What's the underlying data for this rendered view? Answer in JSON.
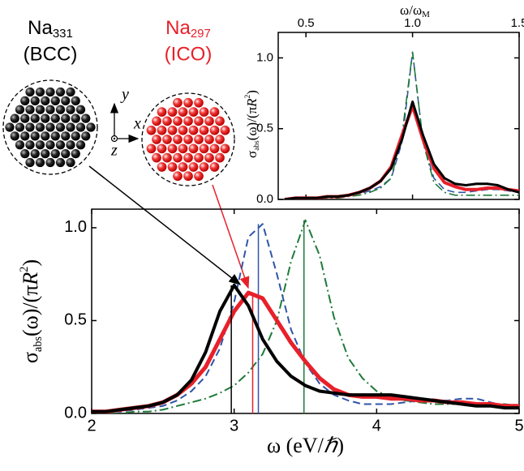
{
  "chart_data": [
    {
      "type": "line",
      "x": [
        2.0,
        2.1,
        2.2,
        2.3,
        2.4,
        2.5,
        2.6,
        2.7,
        2.8,
        2.9,
        3.0,
        3.1,
        3.2,
        3.3,
        3.4,
        3.5,
        3.6,
        3.7,
        3.8,
        3.9,
        4.0,
        4.1,
        4.2,
        4.3,
        4.4,
        4.5,
        4.6,
        4.7,
        4.8,
        4.9,
        5.0
      ],
      "xlabel": [
        "ω (eV/",
        "ℏ",
        ")"
      ],
      "ylabel": [
        "σ",
        "abs",
        "(ω)/(π",
        "R",
        "2",
        ")"
      ],
      "xlim": [
        2,
        5
      ],
      "xticks": [
        2,
        3,
        4,
        5
      ],
      "ylim": [
        0,
        1.1
      ],
      "yticks": [
        {
          "value": 0,
          "label": "0.0"
        },
        {
          "value": 0.5,
          "label": "0.5"
        },
        {
          "value": 1,
          "label": "1.0"
        }
      ],
      "series": [
        {
          "color": "#2f55a8",
          "style": "dashed",
          "width": 2,
          "peak": 3.17,
          "values": [
            0.01,
            0.01,
            0.01,
            0.02,
            0.03,
            0.04,
            0.07,
            0.12,
            0.2,
            0.35,
            0.6,
            0.95,
            1.02,
            0.75,
            0.45,
            0.27,
            0.16,
            0.1,
            0.07,
            0.05,
            0.05,
            0.05,
            0.06,
            0.07,
            0.07,
            0.07,
            0.08,
            0.08,
            0.06,
            0.04,
            0.03
          ]
        },
        {
          "color": "#1f7a3a",
          "style": "dashdot",
          "width": 2,
          "peak": 3.49,
          "values": [
            0,
            0,
            0,
            0.01,
            0.01,
            0.02,
            0.04,
            0.06,
            0.08,
            0.11,
            0.15,
            0.22,
            0.32,
            0.5,
            0.82,
            1.04,
            0.85,
            0.52,
            0.3,
            0.19,
            0.12,
            0.09,
            0.07,
            0.06,
            0.05,
            0.05,
            0.05,
            0.05,
            0.05,
            0.05,
            0.04
          ]
        },
        {
          "color": "#e8202a",
          "style": "solid",
          "width": 5,
          "peak": 3.13,
          "values": [
            0.01,
            0.01,
            0.02,
            0.03,
            0.04,
            0.06,
            0.1,
            0.16,
            0.25,
            0.4,
            0.55,
            0.65,
            0.62,
            0.5,
            0.38,
            0.28,
            0.19,
            0.13,
            0.1,
            0.09,
            0.09,
            0.08,
            0.08,
            0.07,
            0.07,
            0.06,
            0.06,
            0.05,
            0.05,
            0.04,
            0.04
          ]
        },
        {
          "color": "#000000",
          "style": "solid",
          "width": 4,
          "peak": 2.98,
          "values": [
            0.01,
            0.01,
            0.02,
            0.03,
            0.04,
            0.06,
            0.1,
            0.18,
            0.33,
            0.55,
            0.69,
            0.58,
            0.4,
            0.28,
            0.2,
            0.15,
            0.12,
            0.11,
            0.1,
            0.1,
            0.1,
            0.1,
            0.09,
            0.08,
            0.07,
            0.06,
            0.05,
            0.04,
            0.04,
            0.03,
            0.03
          ]
        }
      ],
      "clusters": [
        {
          "name": [
            "Na",
            "331"
          ],
          "structure": "(BCC)",
          "color": "#000000"
        },
        {
          "name": [
            "Na",
            "297"
          ],
          "structure": "(ICO)",
          "color": "#e8202a"
        }
      ],
      "axis_symbols": [
        "y",
        "x",
        "z"
      ]
    },
    {
      "type": "line",
      "x": [
        0.4,
        0.45,
        0.5,
        0.55,
        0.6,
        0.65,
        0.7,
        0.75,
        0.8,
        0.85,
        0.9,
        0.95,
        1.0,
        1.05,
        1.1,
        1.15,
        1.2,
        1.25,
        1.3,
        1.35,
        1.4,
        1.45,
        1.5
      ],
      "xlabel": [
        "ω/ω",
        "M"
      ],
      "ylabel": [
        "σ",
        "abs",
        "(ω)/(π",
        "R",
        "2",
        ")"
      ],
      "xlim": [
        0.37,
        1.5
      ],
      "xticks": [
        0.5,
        {
          "value": 1,
          "label": "1.0"
        },
        1.5
      ],
      "ylim": [
        0,
        1.18
      ],
      "yticks": [
        {
          "value": 0,
          "label": "0.0"
        },
        {
          "value": 0.5,
          "label": "0.5"
        },
        {
          "value": 1,
          "label": "1.0"
        }
      ],
      "series": [
        {
          "color": "#2f55a8",
          "style": "dashed",
          "width": 1.6,
          "values": [
            0,
            0.01,
            0.01,
            0.01,
            0.01,
            0.02,
            0.03,
            0.04,
            0.06,
            0.09,
            0.15,
            0.4,
            1.04,
            0.4,
            0.15,
            0.07,
            0.05,
            0.05,
            0.06,
            0.07,
            0.07,
            0.06,
            0.05
          ]
        },
        {
          "color": "#1f7a3a",
          "style": "dashdot",
          "width": 1.6,
          "values": [
            0,
            0,
            0,
            0.01,
            0.01,
            0.01,
            0.02,
            0.03,
            0.05,
            0.08,
            0.15,
            0.45,
            1.04,
            0.4,
            0.12,
            0.05,
            0.03,
            0.03,
            0.03,
            0.03,
            0.03,
            0.03,
            0.03
          ]
        },
        {
          "color": "#e8202a",
          "style": "solid",
          "width": 4,
          "values": [
            0,
            0.01,
            0.01,
            0.01,
            0.02,
            0.02,
            0.03,
            0.05,
            0.08,
            0.13,
            0.23,
            0.45,
            0.66,
            0.42,
            0.22,
            0.12,
            0.09,
            0.07,
            0.07,
            0.08,
            0.08,
            0.07,
            0.06
          ]
        },
        {
          "color": "#000000",
          "style": "solid",
          "width": 3,
          "values": [
            0,
            0.01,
            0.01,
            0.01,
            0.02,
            0.02,
            0.03,
            0.05,
            0.08,
            0.13,
            0.22,
            0.42,
            0.69,
            0.45,
            0.25,
            0.15,
            0.11,
            0.1,
            0.11,
            0.11,
            0.1,
            0.07,
            0.05
          ]
        }
      ]
    }
  ]
}
